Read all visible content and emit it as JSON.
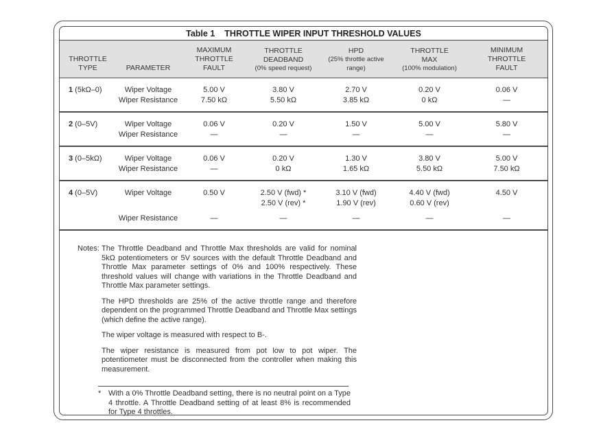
{
  "colors": {
    "line": "#4a4a4a",
    "header_band": "#e1e1e1",
    "text": "#2e2e2e"
  },
  "table": {
    "title_prefix": "Table 1",
    "title": "THROTTLE WIPER INPUT THRESHOLD VALUES",
    "columns": [
      {
        "name": "throttle-type",
        "lines": [
          "THROTTLE",
          "TYPE"
        ],
        "sub": ""
      },
      {
        "name": "parameter",
        "lines": [
          "PARAMETER"
        ],
        "sub": ""
      },
      {
        "name": "maximum-throttle-fault",
        "lines": [
          "MAXIMUM",
          "THROTTLE",
          "FAULT"
        ],
        "sub": ""
      },
      {
        "name": "throttle-deadband",
        "lines": [
          "THROTTLE",
          "DEADBAND"
        ],
        "sub": "(0% speed request)"
      },
      {
        "name": "hpd",
        "lines": [
          "HPD"
        ],
        "sub": "(25% throttle active range)"
      },
      {
        "name": "throttle-max",
        "lines": [
          "THROTTLE",
          "MAX"
        ],
        "sub": "(100% modulation)"
      },
      {
        "name": "minimum-throttle-fault",
        "lines": [
          "MINIMUM",
          "THROTTLE",
          "FAULT"
        ],
        "sub": ""
      }
    ],
    "voltage_label": "Wiper Voltage",
    "resistance_label": "Wiper Resistance",
    "rows": [
      {
        "type_num": "1",
        "type_range": "(5kΩ–0)",
        "voltage": [
          "5.00 V",
          "3.80 V",
          "2.70 V",
          "0.20 V",
          "0.06 V"
        ],
        "resistance": [
          "7.50 kΩ",
          "5.50 kΩ",
          "3.85 kΩ",
          "0 kΩ",
          "—"
        ]
      },
      {
        "type_num": "2",
        "type_range": "(0–5V)",
        "voltage": [
          "0.06 V",
          "0.20 V",
          "1.50 V",
          "5.00 V",
          "5.80 V"
        ],
        "resistance": [
          "—",
          "—",
          "—",
          "—",
          "—"
        ]
      },
      {
        "type_num": "3",
        "type_range": "(0–5kΩ)",
        "voltage": [
          "0.06 V",
          "0.20 V",
          "1.30 V",
          "3.80 V",
          "5.00 V"
        ],
        "resistance": [
          "—",
          "0 kΩ",
          "1.65 kΩ",
          "5.50 kΩ",
          "7.50 kΩ"
        ]
      },
      {
        "type_num": "4",
        "type_range": "(0–5V)",
        "voltage": [
          "0.50 V",
          "2.50 V (fwd) *\n2.50 V (rev) *",
          "3.10 V (fwd)\n1.90 V (rev)",
          "4.40 V (fwd)\n0.60 V (rev)",
          "4.50 V"
        ],
        "resistance": [
          "—",
          "—",
          "—",
          "—",
          "—"
        ]
      }
    ]
  },
  "notes": {
    "label": "Notes:",
    "paragraphs": [
      "The Throttle Deadband and Throttle Max thresholds are valid for nominal 5kΩ potentiometers or 5V sources with the default Throttle Deadband and Throttle Max parameter settings of 0% and 100% respectively. These threshold values will change with variations in the Throttle Deadband and Throttle Max parameter settings.",
      "The HPD thresholds are 25% of the active throttle range and therefore dependent on the programmed Throttle Deadband and Throttle Max settings (which define the active range).",
      "The wiper voltage is measured with respect to B-.",
      "The wiper resistance is measured from pot low to pot wiper. The potentiometer must be disconnected from the controller when making this measurement."
    ]
  },
  "footnote": {
    "marker": "*",
    "text": "With a 0% Throttle Deadband setting, there is no neutral point on a Type 4 throttle. A Throttle Deadband setting of at least 8% is recommended for Type 4 throttles."
  }
}
